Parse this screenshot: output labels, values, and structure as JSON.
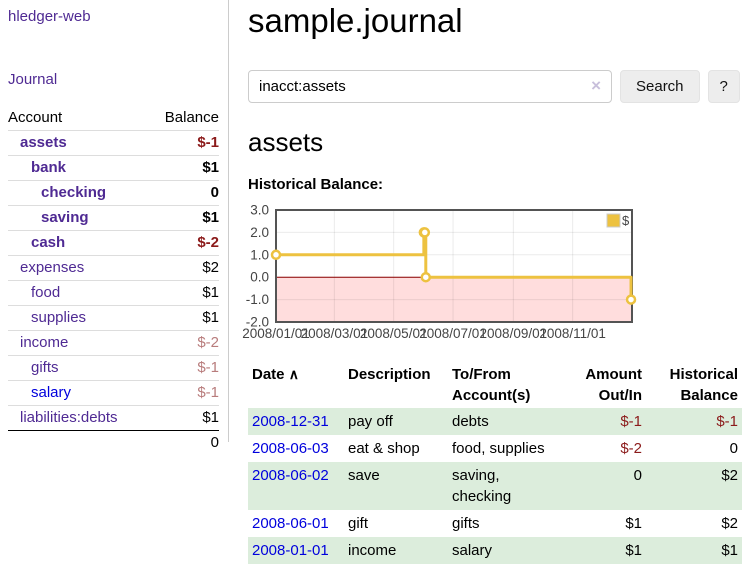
{
  "app": {
    "title": "hledger-web"
  },
  "sidebar": {
    "journal_link": "Journal",
    "account_header": "Account",
    "balance_header": "Balance",
    "accounts": [
      {
        "name": "assets",
        "balance": "$-1"
      },
      {
        "name": "bank",
        "balance": "$1"
      },
      {
        "name": "checking",
        "balance": "0"
      },
      {
        "name": "saving",
        "balance": "$1"
      },
      {
        "name": "cash",
        "balance": "$-2"
      },
      {
        "name": "expenses",
        "balance": "$2"
      },
      {
        "name": "food",
        "balance": "$1"
      },
      {
        "name": "supplies",
        "balance": "$1"
      },
      {
        "name": "income",
        "balance": "$-2"
      },
      {
        "name": "gifts",
        "balance": "$-1"
      },
      {
        "name": "salary",
        "balance": "$-1"
      },
      {
        "name": "liabilities:debts",
        "balance": "$1"
      }
    ],
    "total": "0"
  },
  "main": {
    "title": "sample.journal",
    "search": {
      "value": "inacct:assets",
      "clear_icon": "×",
      "search_button": "Search",
      "help_button": "?"
    },
    "account_heading": "assets",
    "chart_title": "Historical Balance:"
  },
  "chart_data": {
    "type": "line",
    "step": true,
    "title": "Historical Balance:",
    "series": [
      {
        "name": "$",
        "color": "#edc240",
        "x": [
          "2008-01-01",
          "2008-06-01",
          "2008-06-02",
          "2008-06-03",
          "2008-12-31"
        ],
        "values": [
          1,
          2,
          2,
          0,
          -1
        ]
      }
    ],
    "xlim": [
      "2008-01-01",
      "2009-01-01"
    ],
    "ylim": [
      -2,
      3
    ],
    "yticks": [
      3,
      2,
      1,
      0,
      -1,
      -2
    ],
    "ytick_labels": [
      "3.0",
      "2.0",
      "1.0",
      "0.0",
      "-1.0",
      "-2.0"
    ],
    "xticks": [
      "2008-01-01",
      "2008-03-01",
      "2008-05-01",
      "2008-07-01",
      "2008-09-01",
      "2008-11-01"
    ],
    "xtick_labels": [
      "2008/01/01",
      "2008/03/01",
      "2008/05/01",
      "2008/07/01",
      "2008/09/01",
      "2008/11/01"
    ],
    "grid": true,
    "legend_position": "top-right",
    "border_color": "#545454",
    "zero_line_color": "#8b0000",
    "negative_region_color": "#ffdddd",
    "tick_text_color": "#444444"
  },
  "register": {
    "headers": {
      "date": "Date",
      "sort_icon": "∧",
      "description": "Description",
      "accounts": "To/From Account(s)",
      "amount": "Amount Out/In",
      "balance": "Historical Balance"
    },
    "rows": [
      {
        "date": "2008-12-31",
        "description": "pay off",
        "accounts": "debts",
        "amount": "$-1",
        "balance": "$-1"
      },
      {
        "date": "2008-06-03",
        "description": "eat & shop",
        "accounts": "food, supplies",
        "amount": "$-2",
        "balance": "0"
      },
      {
        "date": "2008-06-02",
        "description": "save",
        "accounts": "saving, checking",
        "amount": "0",
        "balance": "$2"
      },
      {
        "date": "2008-06-01",
        "description": "gift",
        "accounts": "gifts",
        "amount": "$1",
        "balance": "$2"
      },
      {
        "date": "2008-01-01",
        "description": "income",
        "accounts": "salary",
        "amount": "$1",
        "balance": "$1"
      }
    ]
  },
  "colors": {
    "link_purple": "#4f2a93",
    "link_blue": "#0000dd",
    "negative_strong": "#8b1a1a",
    "negative_soft": "#b87c7c",
    "row_stripe_green": "#dceddc",
    "series_yellow": "#edc240"
  }
}
